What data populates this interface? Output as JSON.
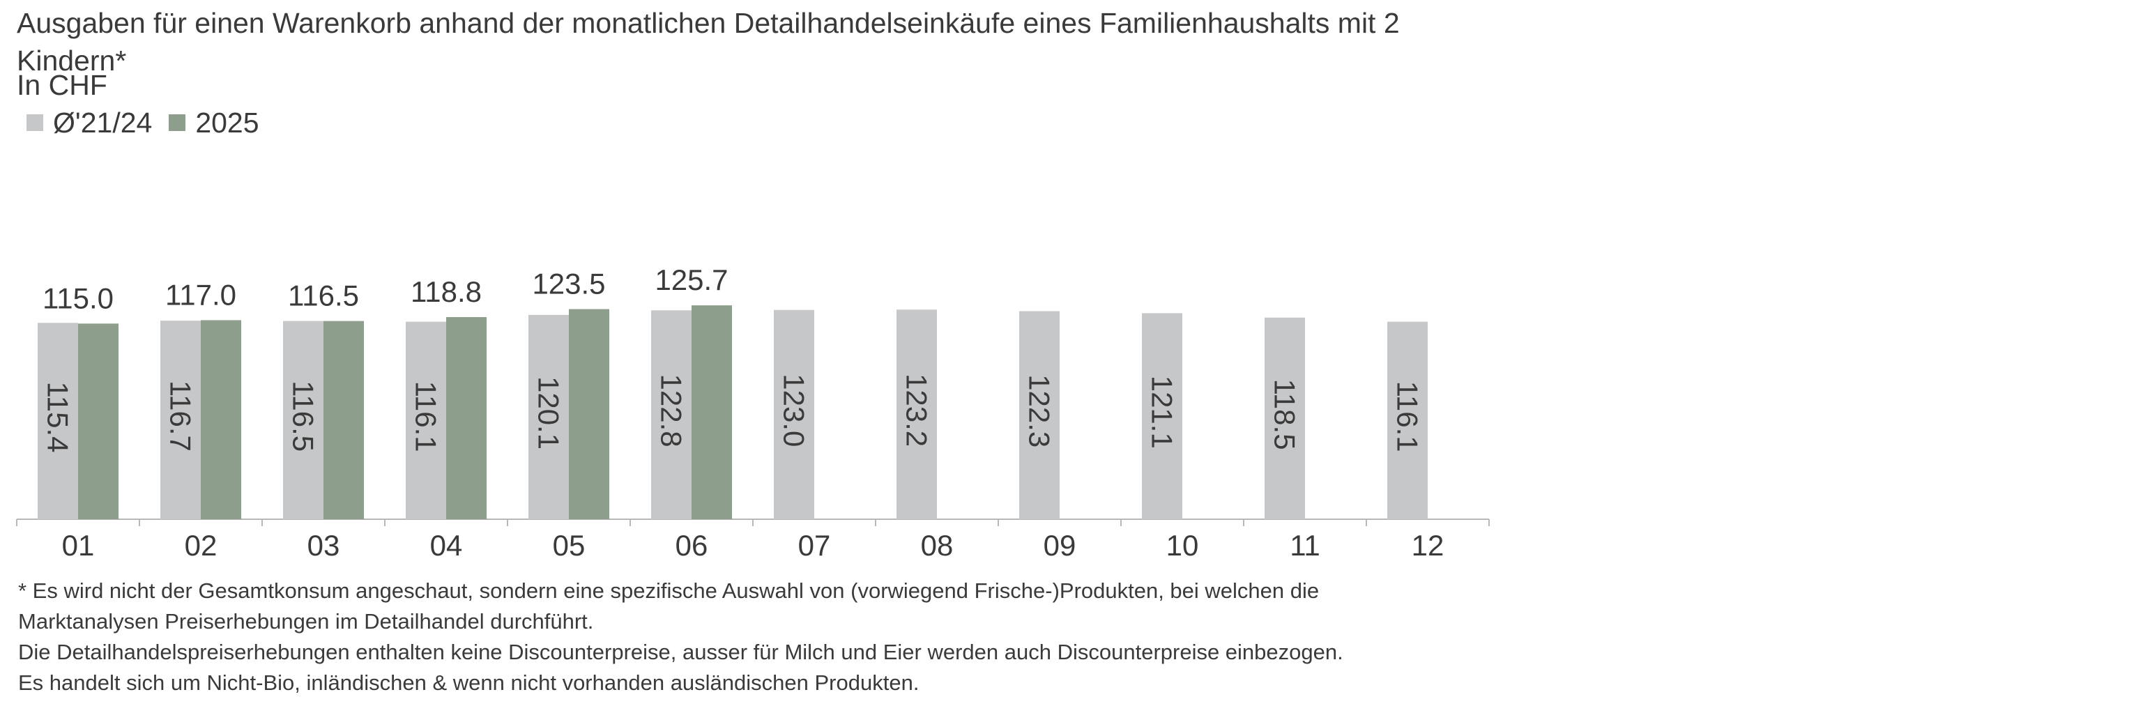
{
  "chart_data": {
    "type": "bar",
    "title": "Ausgaben für einen Warenkorb anhand der monatlichen Detailhandelseinkäufe eines Familienhaushalts mit 2 Kindern*",
    "subtitle": "In CHF",
    "categories": [
      "01",
      "02",
      "03",
      "04",
      "05",
      "06",
      "07",
      "08",
      "09",
      "10",
      "11",
      "12"
    ],
    "series": [
      {
        "name": "Ø'21/24",
        "color": "#c6c7c9",
        "label_position": "inside-rotated",
        "values": [
          115.4,
          116.7,
          116.5,
          116.1,
          120.1,
          122.8,
          123.0,
          123.2,
          122.3,
          121.1,
          118.5,
          116.1
        ]
      },
      {
        "name": "2025",
        "color": "#8e9e8c",
        "label_position": "above",
        "values": [
          115.0,
          117.0,
          116.5,
          118.8,
          123.5,
          125.7,
          null,
          null,
          null,
          null,
          null,
          null
        ]
      }
    ],
    "ylim": [
      0,
      170
    ],
    "legend_position": "top-left",
    "grid": false
  },
  "footnote": {
    "lines": [
      "* Es wird nicht der Gesamtkonsum angeschaut, sondern eine spezifische Auswahl von (vorwiegend Frische-)Produkten, bei welchen die",
      "Marktanalysen Preiserhebungen im Detailhandel durchführt.",
      "Die Detailhandelspreiserhebungen enthalten keine Discounterpreise, ausser für Milch und Eier werden auch Discounterpreise einbezogen.",
      "Es handelt sich um Nicht-Bio, inländischen & wenn nicht vorhanden ausländischen Produkten."
    ]
  }
}
